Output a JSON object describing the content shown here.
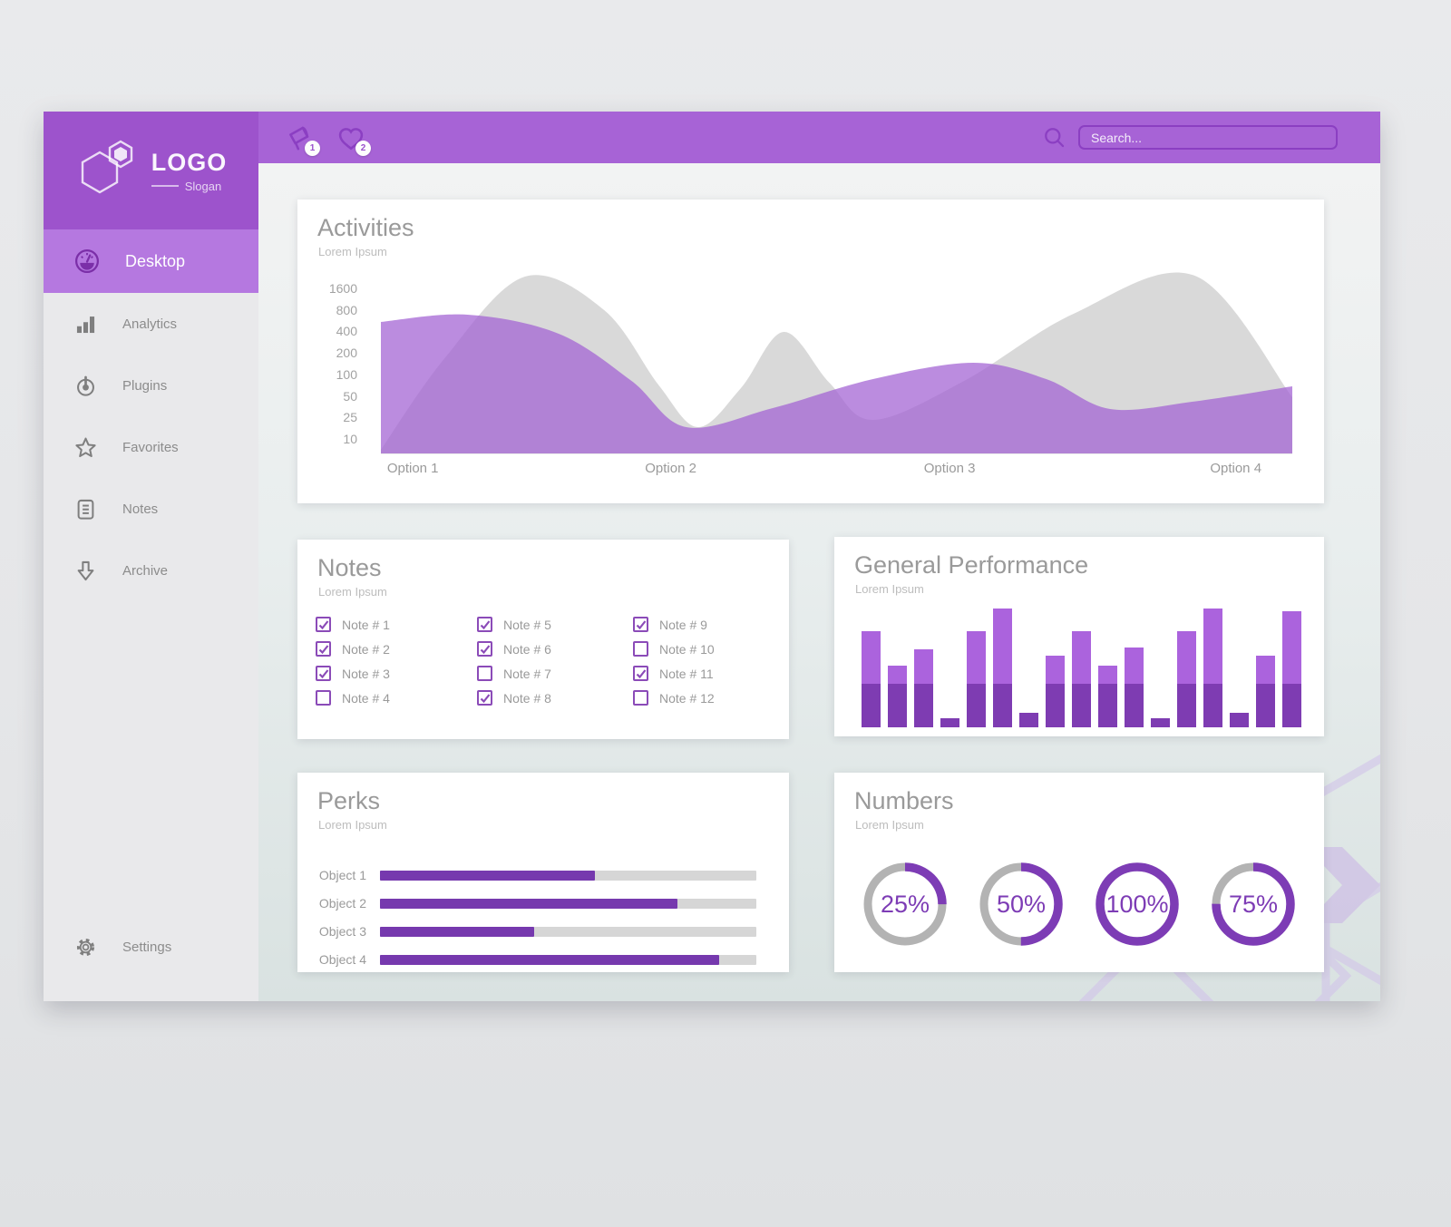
{
  "logo": {
    "name": "LOGO",
    "slogan": "Slogan"
  },
  "header": {
    "megaphone_badge": "1",
    "heart_badge": "2",
    "search_placeholder": "Search..."
  },
  "sidebar": {
    "items": [
      {
        "label": "Desktop",
        "icon": "gauge",
        "active": true
      },
      {
        "label": "Analytics",
        "icon": "bar-chart",
        "active": false
      },
      {
        "label": "Plugins",
        "icon": "power",
        "active": false
      },
      {
        "label": "Favorites",
        "icon": "star",
        "active": false
      },
      {
        "label": "Notes",
        "icon": "document",
        "active": false
      },
      {
        "label": "Archive",
        "icon": "arrow-down",
        "active": false
      }
    ],
    "footer_item": {
      "label": "Settings",
      "icon": "gear"
    }
  },
  "cards": {
    "activities": {
      "title": "Activities",
      "subtitle": "Lorem Ipsum"
    },
    "notes": {
      "title": "Notes",
      "subtitle": "Lorem Ipsum"
    },
    "performance": {
      "title": "General Performance",
      "subtitle": "Lorem Ipsum"
    },
    "perks": {
      "title": "Perks",
      "subtitle": "Lorem Ipsum"
    },
    "numbers": {
      "title": "Numbers",
      "subtitle": "Lorem Ipsum"
    }
  },
  "notes_checklist": [
    {
      "label": "Note # 1",
      "checked": true
    },
    {
      "label": "Note # 2",
      "checked": true
    },
    {
      "label": "Note # 3",
      "checked": true
    },
    {
      "label": "Note # 4",
      "checked": false
    },
    {
      "label": "Note # 5",
      "checked": true
    },
    {
      "label": "Note # 6",
      "checked": true
    },
    {
      "label": "Note # 7",
      "checked": false
    },
    {
      "label": "Note # 8",
      "checked": true
    },
    {
      "label": "Note # 9",
      "checked": true
    },
    {
      "label": "Note # 10",
      "checked": false
    },
    {
      "label": "Note # 11",
      "checked": true
    },
    {
      "label": "Note # 12",
      "checked": false
    }
  ],
  "chart_data": [
    {
      "type": "area",
      "card": "activities",
      "title": "Activities",
      "y_tick_labels": [
        "1600",
        "800",
        "400",
        "200",
        "100",
        "50",
        "25",
        "10"
      ],
      "x_labels": [
        "Option 1",
        "Option 2",
        "Option 3",
        "Option 4"
      ],
      "legend": "none",
      "grid": false,
      "series": [
        {
          "name": "background-series",
          "color": "#d9d9d9",
          "opacity": 1,
          "points": [
            [
              0,
              196
            ],
            [
              70,
              95
            ],
            [
              158,
              5
            ],
            [
              245,
              42
            ],
            [
              305,
              125
            ],
            [
              348,
              171
            ],
            [
              395,
              128
            ],
            [
              442,
              66
            ],
            [
              492,
              122
            ],
            [
              540,
              163
            ],
            [
              640,
              120
            ],
            [
              760,
              46
            ],
            [
              893,
              4
            ],
            [
              1000,
              138
            ]
          ]
        },
        {
          "name": "foreground-series",
          "color": "#a160d2",
          "opacity": 0.72,
          "points": [
            [
              0,
              55
            ],
            [
              95,
              47
            ],
            [
              195,
              68
            ],
            [
              275,
              120
            ],
            [
              335,
              171
            ],
            [
              430,
              150
            ],
            [
              540,
              118
            ],
            [
              650,
              100
            ],
            [
              730,
              118
            ],
            [
              800,
              151
            ],
            [
              890,
              143
            ],
            [
              1000,
              126
            ]
          ]
        }
      ]
    },
    {
      "type": "bar",
      "card": "performance",
      "values": [
        81,
        52,
        66,
        8,
        81,
        100,
        12,
        60,
        81,
        52,
        67,
        8,
        81,
        100,
        12,
        60,
        98
      ],
      "ylim": [
        0,
        100
      ],
      "two_tone": {
        "dark_color": "#7e3cb2",
        "light_color": "#ab63dd",
        "dark_base_pct": 37
      },
      "grid": false
    },
    {
      "type": "progress",
      "card": "perks",
      "categories": [
        "Object 1",
        "Object 2",
        "Object 3",
        "Object 4"
      ],
      "values": [
        57,
        79,
        41,
        90
      ],
      "unit": "%"
    },
    {
      "type": "donut",
      "card": "numbers",
      "labels": [
        "25%",
        "50%",
        "100%",
        "75%"
      ],
      "values": [
        25,
        50,
        100,
        75
      ],
      "ring_color": "#7d3cb5",
      "track_color": "#b3b3b3"
    }
  ],
  "colors": {
    "header": "#a763d6",
    "logo_block": "#9d53cc",
    "active_item": "#b578e0",
    "accent_dark": "#8b3fc2",
    "bar_light": "#ab63dd",
    "bar_dark": "#7e3cb2",
    "progress_fill": "#7639ae",
    "donut_ring": "#7d3cb5",
    "area_gray": "#d9d9d9",
    "area_purple": "#a160d2"
  }
}
